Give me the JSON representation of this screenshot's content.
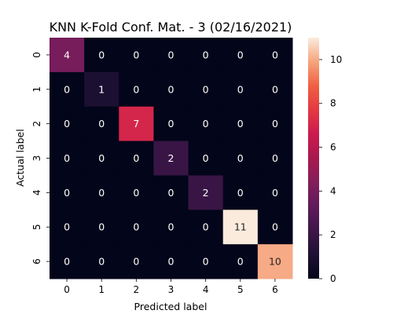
{
  "chart_data": {
    "type": "heatmap",
    "title": "KNN K-Fold Conf. Mat. - 3 (02/16/2021)",
    "xlabel": "Predicted label",
    "ylabel": "Actual label",
    "x_categories": [
      "0",
      "1",
      "2",
      "3",
      "4",
      "5",
      "6"
    ],
    "y_categories": [
      "0",
      "1",
      "2",
      "3",
      "4",
      "5",
      "6"
    ],
    "values": [
      [
        4,
        0,
        0,
        0,
        0,
        0,
        0
      ],
      [
        0,
        1,
        0,
        0,
        0,
        0,
        0
      ],
      [
        0,
        0,
        7,
        0,
        0,
        0,
        0
      ],
      [
        0,
        0,
        0,
        2,
        0,
        0,
        0
      ],
      [
        0,
        0,
        0,
        0,
        2,
        0,
        0
      ],
      [
        0,
        0,
        0,
        0,
        0,
        11,
        0
      ],
      [
        0,
        0,
        0,
        0,
        0,
        0,
        10
      ]
    ],
    "colorbar": {
      "min": 0,
      "max": 11,
      "ticks": [
        "0",
        "2",
        "4",
        "6",
        "8",
        "10"
      ],
      "colormap": "rocket"
    },
    "annotations": true,
    "grid": false
  }
}
